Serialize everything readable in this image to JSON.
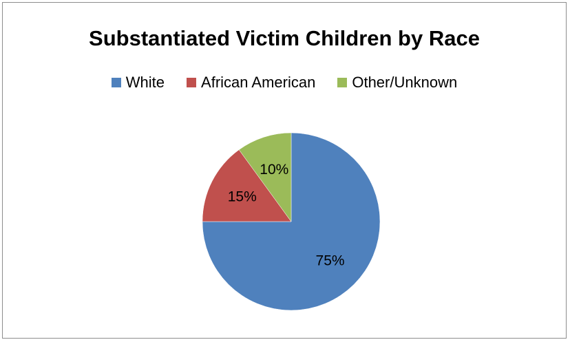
{
  "chart_data": {
    "type": "pie",
    "title": "Substantiated Victim Children by Race",
    "legend_position": "top",
    "categories": [
      "White",
      "African American",
      "Other/Unknown"
    ],
    "values": [
      75,
      15,
      10
    ],
    "labels": [
      "75%",
      "15%",
      "10%"
    ],
    "colors": [
      "#4f81bd",
      "#c0504d",
      "#9bbb59"
    ]
  }
}
